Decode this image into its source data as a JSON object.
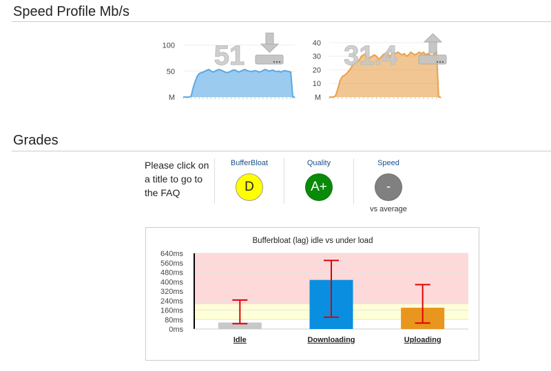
{
  "speed_profile": {
    "title": "Speed Profile Mb/s",
    "download": {
      "value": "51",
      "icon": "download-icon",
      "y_ticks": [
        "100",
        "50",
        "M"
      ],
      "ylim": [
        0,
        110
      ],
      "color": "#5aa8e6",
      "samples": [
        0,
        0,
        0,
        0,
        2,
        18,
        30,
        40,
        45,
        47,
        48,
        50,
        52,
        53,
        50,
        48,
        50,
        52,
        53,
        52,
        50,
        48,
        47,
        48,
        50,
        52,
        52,
        50,
        48,
        50,
        52,
        53,
        51,
        50,
        49,
        50,
        51,
        50,
        48,
        49,
        51,
        53,
        52,
        50,
        51,
        52,
        50,
        49,
        50,
        48,
        50,
        51,
        50,
        49,
        48,
        0,
        0
      ]
    },
    "upload": {
      "value": "31.4",
      "icon": "upload-icon",
      "y_ticks": [
        "40",
        "30",
        "20",
        "10",
        "M"
      ],
      "ylim": [
        0,
        42
      ],
      "color": "#e8a04a",
      "samples": [
        0,
        0,
        0,
        1,
        6,
        12,
        15,
        16,
        17,
        19,
        21,
        24,
        25,
        26,
        27,
        30,
        31,
        32,
        28,
        29,
        30,
        31,
        30,
        28,
        29,
        31,
        32,
        33,
        30,
        31,
        33,
        32,
        33,
        32,
        31,
        32,
        30,
        31,
        33,
        32,
        31,
        32,
        33,
        32,
        33,
        31,
        32,
        31,
        30,
        32,
        33,
        0,
        0
      ]
    }
  },
  "grades": {
    "title": "Grades",
    "intro": "Please click on a title to go to the FAQ",
    "items": [
      {
        "title": "BufferBloat",
        "grade": "D",
        "fill": "#ffff00",
        "text_color": "#222",
        "sub": ""
      },
      {
        "title": "Quality",
        "grade": "A+",
        "fill": "#0a8a0a",
        "text_color": "#ffffff",
        "sub": ""
      },
      {
        "title": "Speed",
        "grade": "-",
        "fill": "#808080",
        "text_color": "#ffffff",
        "sub": "vs average"
      }
    ]
  },
  "chart_data": {
    "type": "bar",
    "title": "Bufferbloat (lag) idle vs under load",
    "categories": [
      "Idle",
      "Downloading",
      "Uploading"
    ],
    "values": [
      55,
      415,
      180
    ],
    "error_low": [
      45,
      100,
      50
    ],
    "error_high": [
      245,
      580,
      375
    ],
    "y_ticks": [
      "640ms",
      "560ms",
      "480ms",
      "400ms",
      "320ms",
      "240ms",
      "160ms",
      "80ms",
      "0ms"
    ],
    "ylim": [
      0,
      640
    ],
    "zones": [
      {
        "from": 0,
        "to": 80,
        "color": "#ffffff"
      },
      {
        "from": 80,
        "to": 210,
        "color": "#ffffd6"
      },
      {
        "from": 210,
        "to": 640,
        "color": "#ffd9d9"
      }
    ],
    "bar_colors": [
      "#c8c8c8",
      "#0a8ee0",
      "#e8961e"
    ],
    "error_color": "#e00000",
    "grid": true,
    "legend": "none"
  }
}
